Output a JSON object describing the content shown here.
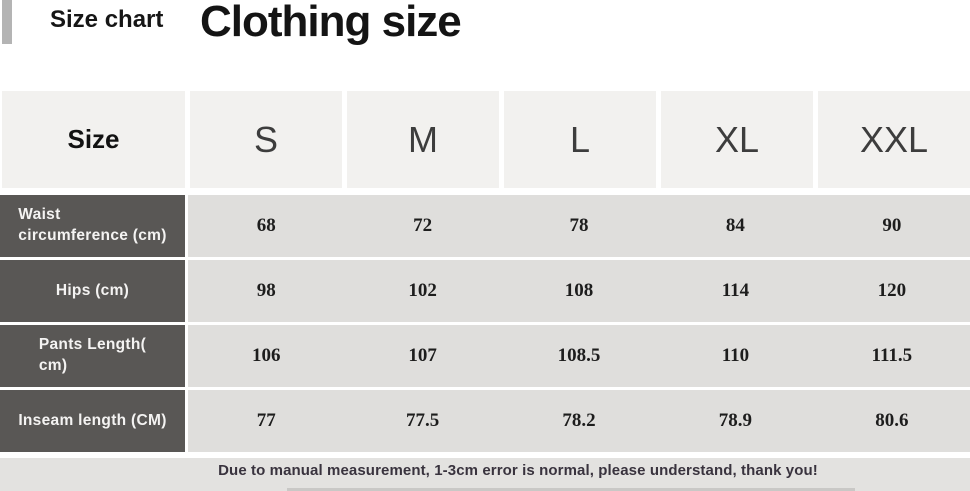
{
  "header": {
    "eyebrow": "Size chart",
    "title": "Clothing size"
  },
  "chart_data": {
    "type": "table",
    "title": "Clothing size",
    "columns": [
      "Size",
      "S",
      "M",
      "L",
      "XL",
      "XXL"
    ],
    "rows": [
      {
        "label": "Waist\ncircumference (cm)",
        "values": [
          "68",
          "72",
          "78",
          "84",
          "90"
        ]
      },
      {
        "label": "Hips (cm)",
        "values": [
          "98",
          "102",
          "108",
          "114",
          "120"
        ]
      },
      {
        "label": "Pants Length(\ncm)",
        "values": [
          "106",
          "107",
          "108.5",
          "110",
          "111.5"
        ]
      },
      {
        "label": "Inseam length (CM)",
        "values": [
          "77",
          "77.5",
          "78.2",
          "78.9",
          "80.6"
        ]
      }
    ],
    "layout_hints": {
      "header_row_background": "#f2f1ef",
      "row_header_background": "#595755",
      "cell_background": "#dfdedc",
      "footer_background": "#e3e2e0",
      "accent_bar_color": "#b4b4b4"
    }
  },
  "footer": {
    "note": "Due to manual measurement, 1-3cm error is normal, please understand, thank you!"
  }
}
